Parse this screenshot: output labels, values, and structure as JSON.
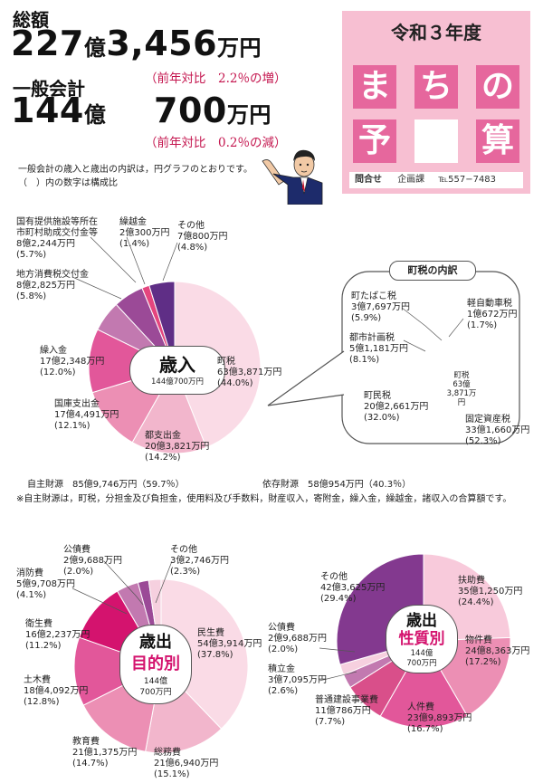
{
  "header": {
    "total_label": "総額",
    "total_num1": "227",
    "total_unit1": "億",
    "total_num2": "3,456",
    "total_unit2": "万円",
    "total_compare": "（前年対比　2.2％の増）",
    "general_label": "一般会計",
    "general_num1": "144",
    "general_unit1": "億",
    "general_num2": "700",
    "general_unit2": "万円",
    "general_compare": "（前年対比　0.2％の減）"
  },
  "title_box": {
    "year": "令和３年度",
    "tiles": [
      "ま",
      "ち",
      "の",
      "予",
      "",
      "算"
    ],
    "inquiry": "問合せ",
    "dept": "企画課",
    "phone": "℡557−7483"
  },
  "intro": {
    "line1": "一般会計の歳入と歳出の内訳は，円グラフのとおりです。",
    "line2": "（　）内の数字は構成比"
  },
  "sources": {
    "own": "自主財源　85億9,746万円（59.7％）",
    "dependent": "依存財源　58億954万円（40.3％）",
    "note": "※自主財源は，町税，分担金及び負担金，使用料及び手数料，財産収入，寄附金，繰入金，繰越金，諸収入の合算額です。"
  },
  "chart_data": [
    {
      "type": "pie",
      "title": "歳入",
      "total": "144億700万円",
      "slices": [
        {
          "name": "町税",
          "amount": "63億3,871万円",
          "pct": 44.0,
          "color": "#fadbe6"
        },
        {
          "name": "都支出金",
          "amount": "20億3,821万円",
          "pct": 14.2,
          "color": "#f2b6cc"
        },
        {
          "name": "国庫支出金",
          "amount": "17億4,491万円",
          "pct": 12.1,
          "color": "#ec8fb4"
        },
        {
          "name": "繰入金",
          "amount": "17億2,348万円",
          "pct": 12.0,
          "color": "#e2579a"
        },
        {
          "name": "地方消費税交付金",
          "amount": "8億2,825万円",
          "pct": 5.8,
          "color": "#c279b0"
        },
        {
          "name": "国有提供施設等所在市町村助成交付金等",
          "amount": "8億2,244万円",
          "pct": 5.7,
          "color": "#9b4a97"
        },
        {
          "name": "繰越金",
          "amount": "2億300万円",
          "pct": 1.4,
          "color": "#e4457e"
        },
        {
          "name": "その他",
          "amount": "7億800万円",
          "pct": 4.8,
          "color": "#5f2e86"
        }
      ]
    },
    {
      "type": "pie",
      "title": "町税の内訳",
      "center": [
        "町税",
        "63億",
        "3,871万円"
      ],
      "slices": [
        {
          "name": "固定資産税",
          "amount": "33億1,660万円",
          "pct": 52.3,
          "color": "#fadbe6"
        },
        {
          "name": "町民税",
          "amount": "20億2,661万円",
          "pct": 32.0,
          "color": "#f2b6cc"
        },
        {
          "name": "都市計画税",
          "amount": "5億1,181万円",
          "pct": 8.1,
          "color": "#ec8fb4"
        },
        {
          "name": "町たばこ税",
          "amount": "3億7,697万円",
          "pct": 5.9,
          "color": "#e2579a"
        },
        {
          "name": "軽自動車税",
          "amount": "1億672万円",
          "pct": 1.7,
          "color": "#c8246a"
        }
      ]
    },
    {
      "type": "pie",
      "title": "歳出 目的別",
      "total": "144億700万円",
      "slices": [
        {
          "name": "民生費",
          "amount": "54億3,914万円",
          "pct": 37.8,
          "color": "#fadbe6"
        },
        {
          "name": "総務費",
          "amount": "21億6,940万円",
          "pct": 15.1,
          "color": "#f2b6cc"
        },
        {
          "name": "教育費",
          "amount": "21億1,375万円",
          "pct": 14.7,
          "color": "#ec8fb4"
        },
        {
          "name": "土木費",
          "amount": "18億4,092万円",
          "pct": 12.8,
          "color": "#e2579a"
        },
        {
          "name": "衛生費",
          "amount": "16億2,237万円",
          "pct": 11.2,
          "color": "#d4136e"
        },
        {
          "name": "消防費",
          "amount": "5億9,708万円",
          "pct": 4.1,
          "color": "#c279b0"
        },
        {
          "name": "公債費",
          "amount": "2億9,688万円",
          "pct": 2.0,
          "color": "#9b4a97"
        },
        {
          "name": "その他",
          "amount": "3億2,746万円",
          "pct": 2.3,
          "color": "#f6d0df"
        }
      ]
    },
    {
      "type": "pie",
      "title": "歳出 性質別",
      "total": "144億700万円",
      "slices": [
        {
          "name": "扶助費",
          "amount": "35億1,250万円",
          "pct": 24.4,
          "color": "#f8cadb"
        },
        {
          "name": "物件費",
          "amount": "24億8,363万円",
          "pct": 17.2,
          "color": "#ec8fb4"
        },
        {
          "name": "人件費",
          "amount": "23億9,893万円",
          "pct": 16.7,
          "color": "#e2579a"
        },
        {
          "name": "普通建設事業費",
          "amount": "11億786万円",
          "pct": 7.7,
          "color": "#d94f8a"
        },
        {
          "name": "積立金",
          "amount": "3億7,095万円",
          "pct": 2.6,
          "color": "#c279b0"
        },
        {
          "name": "公債費",
          "amount": "2億9,688万円",
          "pct": 2.0,
          "color": "#f6d0df"
        },
        {
          "name": "その他",
          "amount": "42億3,625万円",
          "pct": 29.4,
          "color": "#83398f"
        }
      ]
    }
  ],
  "chart_text": {
    "revenue_center_title": "歳入",
    "revenue_center_total": "144億700万円",
    "tax_box_title": "町税の内訳",
    "exp1_center_t1": "歳出",
    "exp1_center_t2": "目的別",
    "exp1_center_total1": "144億",
    "exp1_center_total2": "700万円",
    "exp2_center_t1": "歳出",
    "exp2_center_t2": "性質別",
    "exp2_center_total1": "144億",
    "exp2_center_total2": "700万円"
  },
  "labels": {
    "rev": [
      [
        "町税",
        "63億3,871万円",
        "(44.0%)"
      ],
      [
        "都支出金",
        "20億3,821万円",
        "(14.2%)"
      ],
      [
        "国庫支出金",
        "17億4,491万円",
        "(12.1%)"
      ],
      [
        "繰入金",
        "17億2,348万円",
        "(12.0%)"
      ],
      [
        "地方消費税交付金",
        "8億2,825万円",
        "(5.8%)"
      ],
      [
        "国有提供施設等所在",
        "市町村助成交付金等",
        "8億2,244万円",
        "(5.7%)"
      ],
      [
        "繰越金",
        "2億300万円",
        "(1.4%)"
      ],
      [
        "その他",
        "7億800万円",
        "(4.8%)"
      ]
    ],
    "tax": [
      [
        "町たばこ税",
        "3億7,697万円",
        "(5.9%)"
      ],
      [
        "軽自動車税",
        "1億672万円",
        "(1.7%)"
      ],
      [
        "都市計画税",
        "5億1,181万円",
        "(8.1%)"
      ],
      [
        "町民税",
        "20億2,661万円",
        "(32.0%)"
      ],
      [
        "固定資産税",
        "33億1,660万円",
        "(52.3%)"
      ]
    ],
    "exp1": [
      [
        "公債費",
        "2億9,688万円",
        "(2.0%)"
      ],
      [
        "その他",
        "3億2,746万円",
        "(2.3%)"
      ],
      [
        "消防費",
        "5億9,708万円",
        "(4.1%)"
      ],
      [
        "衛生費",
        "16億2,237万円",
        "(11.2%)"
      ],
      [
        "民生費",
        "54億3,914万円",
        "(37.8%)"
      ],
      [
        "土木費",
        "18億4,092万円",
        "(12.8%)"
      ],
      [
        "教育費",
        "21億1,375万円",
        "(14.7%)"
      ],
      [
        "総務費",
        "21億6,940万円",
        "(15.1%)"
      ]
    ],
    "exp2": [
      [
        "その他",
        "42億3,625万円",
        "(29.4%)"
      ],
      [
        "扶助費",
        "35億1,250万円",
        "(24.4%)"
      ],
      [
        "公債費",
        "2億9,688万円",
        "(2.0%)"
      ],
      [
        "物件費",
        "24億8,363万円",
        "(17.2%)"
      ],
      [
        "積立金",
        "3億7,095万円",
        "(2.6%)"
      ],
      [
        "普通建設事業費",
        "11億786万円",
        "(7.7%)"
      ],
      [
        "人件費",
        "23億9,893万円",
        "(16.7%)"
      ]
    ]
  }
}
